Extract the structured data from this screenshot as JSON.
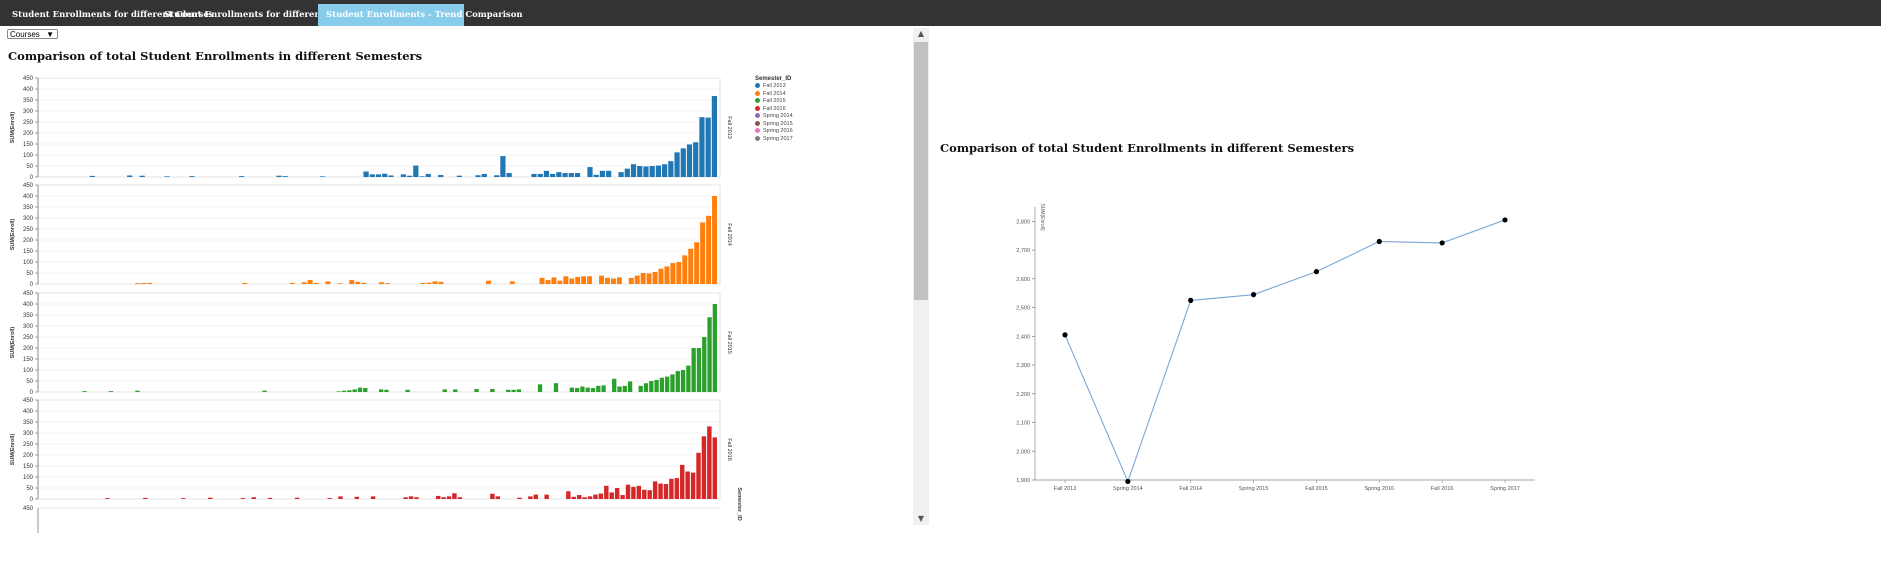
{
  "tabs": [
    {
      "label": "Student Enrollments for different Courses"
    },
    {
      "label": "Student Enrollments for different Instructors"
    },
    {
      "label": "Student Enrollments - Trend Comparison"
    }
  ],
  "dropdown": {
    "selected": "Courses"
  },
  "left_title": "Comparison of total Student Enrollments in different Semesters",
  "right_title": "Comparison of total Student Enrollments in different Semesters",
  "legend": {
    "title": "Semester_ID",
    "items": [
      {
        "label": "Fall 2013",
        "color": "#1f77b4"
      },
      {
        "label": "Fall 2014",
        "color": "#ff7f0e"
      },
      {
        "label": "Fall 2015",
        "color": "#2ca02c"
      },
      {
        "label": "Fall 2016",
        "color": "#d62728"
      },
      {
        "label": "Spring 2014",
        "color": "#9467bd"
      },
      {
        "label": "Spring 2015",
        "color": "#8c564b"
      },
      {
        "label": "Spring 2016",
        "color": "#e377c2"
      },
      {
        "label": "Spring 2017",
        "color": "#7f7f7f"
      }
    ]
  },
  "chart_data": [
    {
      "type": "bar",
      "title": "Comparison of total Student Enrollments in different Semesters",
      "ylabel": "SUM(Enroll)",
      "facet_label": "Semester_ID",
      "ylim": [
        0,
        450
      ],
      "yticks": [
        0,
        50,
        100,
        150,
        200,
        250,
        300,
        350,
        400,
        450
      ],
      "series": [
        {
          "name": "Fall 2013",
          "color": "#1f77b4",
          "values": [
            0,
            0,
            0,
            0,
            0,
            0,
            0,
            0,
            5,
            0,
            0,
            0,
            0,
            0,
            7,
            0,
            6,
            0,
            0,
            0,
            3,
            0,
            0,
            0,
            4,
            0,
            0,
            0,
            0,
            0,
            0,
            0,
            4,
            0,
            0,
            0,
            0,
            0,
            6,
            4,
            0,
            0,
            0,
            0,
            0,
            3,
            0,
            0,
            0,
            0,
            0,
            0,
            25,
            12,
            12,
            15,
            7,
            0,
            12,
            6,
            52,
            3,
            14,
            0,
            9,
            0,
            0,
            6,
            0,
            0,
            8,
            14,
            0,
            8,
            95,
            18,
            0,
            0,
            0,
            14,
            14,
            28,
            14,
            22,
            18,
            18,
            18,
            0,
            45,
            10,
            28,
            28,
            0,
            22,
            38,
            58,
            50,
            48,
            50,
            52,
            58,
            72,
            112,
            130,
            148,
            158,
            272,
            270,
            368
          ]
        },
        {
          "name": "Fall 2014",
          "color": "#ff7f0e",
          "values": [
            0,
            0,
            0,
            0,
            0,
            0,
            0,
            0,
            0,
            0,
            0,
            0,
            0,
            0,
            0,
            0,
            4,
            5,
            5,
            0,
            0,
            0,
            0,
            0,
            0,
            0,
            0,
            0,
            0,
            0,
            0,
            0,
            0,
            0,
            5,
            0,
            0,
            0,
            0,
            0,
            0,
            0,
            5,
            0,
            8,
            18,
            5,
            0,
            12,
            0,
            3,
            0,
            18,
            10,
            5,
            0,
            0,
            8,
            4,
            0,
            0,
            0,
            0,
            0,
            5,
            6,
            12,
            10,
            0,
            0,
            0,
            0,
            0,
            0,
            0,
            15,
            0,
            0,
            0,
            12,
            0,
            0,
            0,
            0,
            28,
            18,
            30,
            15,
            35,
            25,
            32,
            35,
            35,
            0,
            38,
            28,
            25,
            30,
            0,
            28,
            38,
            50,
            48,
            55,
            70,
            80,
            95,
            100,
            130,
            160,
            190,
            280,
            310,
            400
          ]
        },
        {
          "name": "Fall 2015",
          "color": "#2ca02c",
          "values": [
            0,
            0,
            0,
            0,
            0,
            0,
            0,
            0,
            4,
            0,
            0,
            0,
            0,
            4,
            0,
            0,
            0,
            0,
            6,
            0,
            0,
            0,
            0,
            0,
            0,
            0,
            0,
            0,
            0,
            0,
            0,
            0,
            0,
            0,
            0,
            0,
            0,
            0,
            0,
            0,
            0,
            0,
            6,
            0,
            0,
            0,
            0,
            0,
            0,
            0,
            0,
            0,
            0,
            0,
            0,
            0,
            3,
            6,
            8,
            12,
            20,
            18,
            0,
            0,
            12,
            10,
            0,
            0,
            0,
            10,
            0,
            0,
            0,
            0,
            0,
            0,
            12,
            0,
            12,
            0,
            0,
            0,
            14,
            0,
            0,
            14,
            0,
            0,
            10,
            10,
            12,
            0,
            0,
            0,
            35,
            0,
            0,
            40,
            0,
            0,
            20,
            18,
            25,
            20,
            18,
            28,
            30,
            0,
            60,
            25,
            28,
            48,
            0,
            28,
            40,
            50,
            55,
            65,
            70,
            80,
            95,
            100,
            120,
            200,
            200,
            250,
            340,
            400
          ]
        },
        {
          "name": "Fall 2016",
          "color": "#d62728",
          "values": [
            0,
            0,
            0,
            0,
            0,
            0,
            0,
            0,
            0,
            0,
            0,
            0,
            4,
            0,
            0,
            0,
            0,
            0,
            0,
            5,
            0,
            0,
            0,
            0,
            0,
            0,
            4,
            0,
            0,
            0,
            0,
            6,
            0,
            0,
            0,
            0,
            0,
            4,
            0,
            8,
            0,
            0,
            5,
            0,
            0,
            0,
            0,
            6,
            0,
            0,
            0,
            0,
            0,
            4,
            0,
            12,
            0,
            0,
            10,
            0,
            0,
            12,
            0,
            0,
            0,
            0,
            0,
            8,
            12,
            8,
            0,
            0,
            0,
            14,
            8,
            12,
            26,
            8,
            0,
            0,
            0,
            0,
            0,
            24,
            12,
            0,
            0,
            0,
            6,
            0,
            12,
            20,
            0,
            20,
            0,
            0,
            0,
            35,
            10,
            18,
            8,
            12,
            20,
            25,
            60,
            30,
            50,
            18,
            65,
            55,
            60,
            42,
            40,
            80,
            70,
            68,
            92,
            95,
            155,
            125,
            120,
            210,
            285,
            330,
            280
          ]
        }
      ]
    },
    {
      "type": "line",
      "title": "Comparison of total Student Enrollments in different Semesters",
      "ylabel": "SUM(Enroll)",
      "x": [
        "Fall 2013",
        "Spring 2014",
        "Fall 2014",
        "Spring 2015",
        "Fall 2015",
        "Spring 2016",
        "Fall 2016",
        "Spring 2017"
      ],
      "values": [
        2405,
        1895,
        2525,
        2545,
        2625,
        2730,
        2725,
        2805
      ],
      "ylim": [
        1900,
        2850
      ],
      "yticks": [
        "1,900",
        "2,000",
        "2,100",
        "2,200",
        "2,300",
        "2,400",
        "2,500",
        "2,600",
        "2,700",
        "2,800"
      ]
    }
  ]
}
